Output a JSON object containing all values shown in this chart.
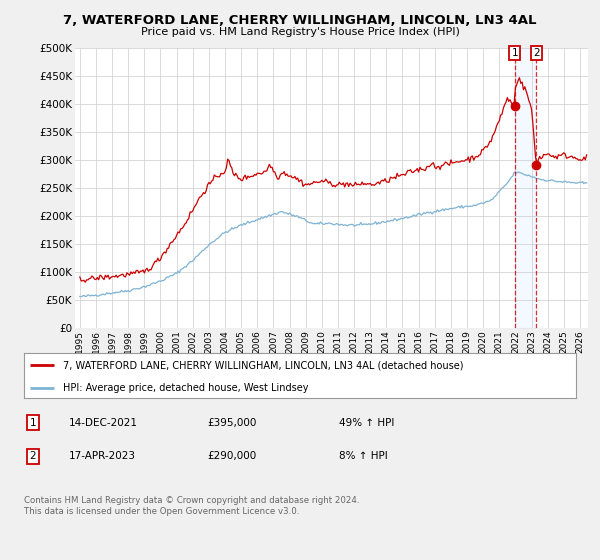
{
  "title_line1": "7, WATERFORD LANE, CHERRY WILLINGHAM, LINCOLN, LN3 4AL",
  "title_line2": "Price paid vs. HM Land Registry's House Price Index (HPI)",
  "ylabel_ticks": [
    "£0",
    "£50K",
    "£100K",
    "£150K",
    "£200K",
    "£250K",
    "£300K",
    "£350K",
    "£400K",
    "£450K",
    "£500K"
  ],
  "ytick_values": [
    0,
    50000,
    100000,
    150000,
    200000,
    250000,
    300000,
    350000,
    400000,
    450000,
    500000
  ],
  "xlim": [
    1994.7,
    2026.5
  ],
  "ylim": [
    0,
    500000
  ],
  "red_color": "#cc0000",
  "blue_color": "#7fb3d3",
  "sale1_x": 2021.96,
  "sale1_y": 395000,
  "sale2_x": 2023.29,
  "sale2_y": 290000,
  "legend_label_red": "7, WATERFORD LANE, CHERRY WILLINGHAM, LINCOLN, LN3 4AL (detached house)",
  "legend_label_blue": "HPI: Average price, detached house, West Lindsey",
  "annotation1_num": "1",
  "annotation1_date": "14-DEC-2021",
  "annotation1_price": "£395,000",
  "annotation1_hpi": "49% ↑ HPI",
  "annotation2_num": "2",
  "annotation2_date": "17-APR-2023",
  "annotation2_price": "£290,000",
  "annotation2_hpi": "8% ↑ HPI",
  "footer": "Contains HM Land Registry data © Crown copyright and database right 2024.\nThis data is licensed under the Open Government Licence v3.0.",
  "bg_color": "#f0f0f0",
  "plot_bg_color": "#ffffff",
  "grid_color": "#cccccc"
}
